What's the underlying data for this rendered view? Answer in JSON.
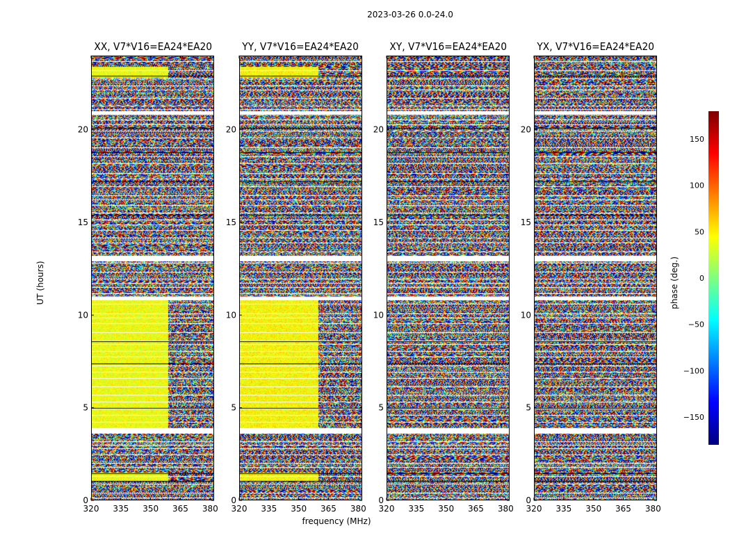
{
  "figure": {
    "title": "2023-03-26 0.0-24.0",
    "xlabel": "frequency (MHz)",
    "ylabel": "UT (hours)",
    "colorbar_label": "phase (deg.)"
  },
  "chart_data": {
    "type": "heatmap",
    "colormap": "jet",
    "color_range": [
      -180,
      180
    ],
    "colorbar_ticks": [
      150,
      100,
      50,
      0,
      -50,
      -100,
      -150
    ],
    "colorbar_tick_labels": [
      "150",
      "100",
      "50",
      "0",
      "−50",
      "−100",
      "−150"
    ],
    "xlim": [
      320,
      382
    ],
    "ylim": [
      0,
      24
    ],
    "x_ticks": [
      320,
      335,
      350,
      365,
      380
    ],
    "x_tick_labels": [
      "320",
      "335",
      "350",
      "365",
      "380"
    ],
    "y_ticks": [
      0,
      5,
      10,
      15,
      20
    ],
    "y_tick_labels": [
      "0",
      "5",
      "10",
      "15",
      "20"
    ],
    "panels": [
      {
        "title": "XX, V7*V16=EA24*EA20",
        "coherent_phase": 40,
        "coherent_spans": [
          [
            3.9,
            10.8,
            320,
            359
          ],
          [
            1.0,
            1.5,
            320,
            359
          ],
          [
            22.8,
            23.4,
            320,
            359
          ]
        ]
      },
      {
        "title": "YY, V7*V16=EA24*EA20",
        "coherent_phase": 45,
        "coherent_spans": [
          [
            3.9,
            10.8,
            320,
            360
          ],
          [
            1.0,
            1.5,
            320,
            360
          ],
          [
            22.8,
            23.4,
            320,
            360
          ]
        ]
      },
      {
        "title": "XY, V7*V16=EA24*EA20",
        "coherent_phase": null,
        "coherent_spans": []
      },
      {
        "title": "YX, V7*V16=EA24*EA20",
        "coherent_phase": null,
        "coherent_spans": []
      }
    ],
    "flagged_hours": [
      [
        3.6,
        3.9
      ],
      [
        10.8,
        11.0
      ],
      [
        12.9,
        13.2
      ],
      [
        20.8,
        21.0
      ]
    ]
  }
}
